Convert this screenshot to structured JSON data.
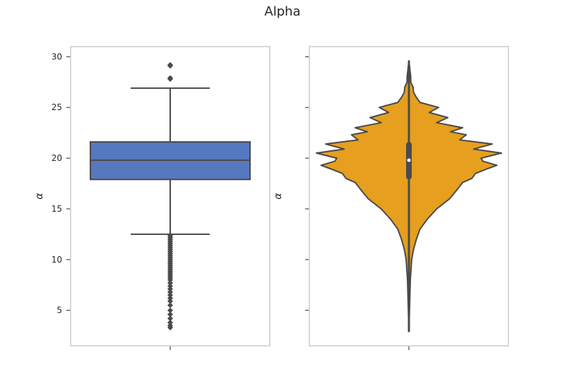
{
  "figure_title": "Alpha",
  "chart_data": [
    {
      "type": "box",
      "title": "",
      "xlabel": "",
      "ylabel": "α",
      "ylim": [
        1.5,
        31.0
      ],
      "yticks": [
        5,
        10,
        15,
        20,
        25,
        30
      ],
      "color": "#5578c1",
      "edge_color": "#4a4a4a",
      "box": {
        "median": 19.8,
        "q1": 17.9,
        "q3": 21.6,
        "whisker_low": 12.5,
        "whisker_high": 26.9
      },
      "outliers": [
        29.2,
        29.1,
        27.9,
        27.8,
        12.4,
        12.2,
        12.0,
        11.8,
        11.6,
        11.4,
        11.2,
        11.0,
        10.8,
        10.6,
        10.4,
        10.2,
        10.0,
        9.8,
        9.6,
        9.4,
        9.2,
        9.0,
        8.8,
        8.6,
        8.4,
        8.2,
        8.0,
        7.7,
        7.4,
        7.1,
        6.8,
        6.5,
        6.2,
        5.9,
        5.5,
        5.0,
        4.6,
        4.2,
        3.8,
        3.5,
        3.3
      ]
    },
    {
      "type": "violin",
      "title": "",
      "xlabel": "",
      "ylabel": "α",
      "ylim": [
        1.5,
        31.0
      ],
      "yticks": [
        5,
        10,
        15,
        20,
        25,
        30
      ],
      "color": "#e69f1e",
      "edge_color": "#4a4a4a",
      "data_range": [
        2.9,
        29.6
      ],
      "inner_box": {
        "q1": 17.9,
        "q3": 21.6,
        "median": 19.8,
        "whisker_low": 12.5,
        "whisker_high": 26.9
      },
      "density": [
        {
          "y": 2.9,
          "w": 0.0
        },
        {
          "y": 8.0,
          "w": 0.015
        },
        {
          "y": 10.0,
          "w": 0.03
        },
        {
          "y": 11.0,
          "w": 0.05
        },
        {
          "y": 12.0,
          "w": 0.08
        },
        {
          "y": 13.0,
          "w": 0.12
        },
        {
          "y": 14.0,
          "w": 0.2
        },
        {
          "y": 15.0,
          "w": 0.3
        },
        {
          "y": 16.0,
          "w": 0.44
        },
        {
          "y": 17.0,
          "w": 0.53
        },
        {
          "y": 17.6,
          "w": 0.58
        },
        {
          "y": 18.0,
          "w": 0.68
        },
        {
          "y": 18.5,
          "w": 0.72
        },
        {
          "y": 19.0,
          "w": 0.86
        },
        {
          "y": 19.3,
          "w": 0.95
        },
        {
          "y": 19.7,
          "w": 0.8
        },
        {
          "y": 20.0,
          "w": 0.78
        },
        {
          "y": 20.5,
          "w": 1.0
        },
        {
          "y": 20.9,
          "w": 0.7
        },
        {
          "y": 21.4,
          "w": 0.9
        },
        {
          "y": 21.8,
          "w": 0.55
        },
        {
          "y": 22.3,
          "w": 0.62
        },
        {
          "y": 22.6,
          "w": 0.45
        },
        {
          "y": 23.0,
          "w": 0.58
        },
        {
          "y": 23.5,
          "w": 0.3
        },
        {
          "y": 24.0,
          "w": 0.42
        },
        {
          "y": 24.5,
          "w": 0.22
        },
        {
          "y": 25.0,
          "w": 0.32
        },
        {
          "y": 25.5,
          "w": 0.12
        },
        {
          "y": 26.0,
          "w": 0.08
        },
        {
          "y": 26.5,
          "w": 0.05
        },
        {
          "y": 27.0,
          "w": 0.045
        },
        {
          "y": 27.5,
          "w": 0.02
        },
        {
          "y": 28.0,
          "w": 0.02
        },
        {
          "y": 29.6,
          "w": 0.0
        }
      ]
    }
  ]
}
